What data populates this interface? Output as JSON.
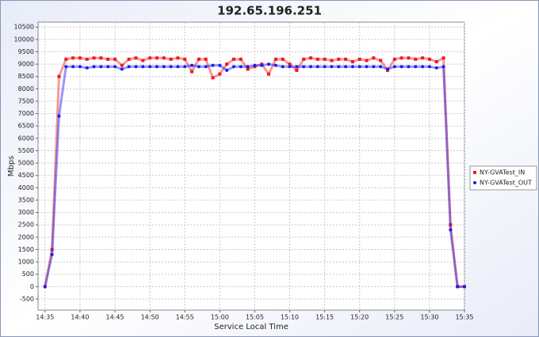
{
  "chart_data": {
    "type": "line",
    "title": "192.65.196.251",
    "x_label": "Service Local Time",
    "y_label": "Mbps",
    "x": [
      "14:35",
      "14:36",
      "14:37",
      "14:38",
      "14:39",
      "14:40",
      "14:41",
      "14:42",
      "14:43",
      "14:44",
      "14:45",
      "14:46",
      "14:47",
      "14:48",
      "14:49",
      "14:50",
      "14:51",
      "14:52",
      "14:53",
      "14:54",
      "14:55",
      "14:56",
      "14:57",
      "14:58",
      "14:59",
      "15:00",
      "15:01",
      "15:02",
      "15:03",
      "15:04",
      "15:05",
      "15:06",
      "15:07",
      "15:08",
      "15:09",
      "15:10",
      "15:11",
      "15:12",
      "15:13",
      "15:14",
      "15:15",
      "15:16",
      "15:17",
      "15:18",
      "15:19",
      "15:20",
      "15:21",
      "15:22",
      "15:23",
      "15:24",
      "15:25",
      "15:26",
      "15:27",
      "15:28",
      "15:29",
      "15:30",
      "15:31",
      "15:32",
      "15:33",
      "15:34",
      "15:35"
    ],
    "series": [
      {
        "name": "NY-GVATest_IN",
        "color": "#ee1c1c",
        "marker": "square",
        "values": [
          0,
          1500,
          8500,
          9200,
          9250,
          9250,
          9200,
          9250,
          9250,
          9200,
          9200,
          8950,
          9200,
          9250,
          9150,
          9250,
          9250,
          9250,
          9200,
          9250,
          9200,
          8700,
          9200,
          9200,
          8450,
          8600,
          9000,
          9200,
          9200,
          8800,
          8900,
          9000,
          8600,
          9200,
          9200,
          9000,
          8750,
          9200,
          9250,
          9200,
          9200,
          9150,
          9200,
          9200,
          9100,
          9200,
          9150,
          9250,
          9150,
          8750,
          9200,
          9250,
          9250,
          9200,
          9250,
          9200,
          9100,
          9250,
          2500,
          0,
          0
        ]
      },
      {
        "name": "NY-GVATest_OUT",
        "color": "#1c1cee",
        "marker": "circle",
        "values": [
          0,
          1300,
          6900,
          8900,
          8900,
          8900,
          8850,
          8900,
          8900,
          8900,
          8900,
          8800,
          8900,
          8900,
          8900,
          8900,
          8900,
          8900,
          8900,
          8900,
          8900,
          8950,
          8900,
          8900,
          8950,
          8950,
          8750,
          8900,
          8900,
          8900,
          8950,
          8950,
          9000,
          8950,
          8900,
          8900,
          8900,
          8900,
          8900,
          8900,
          8900,
          8900,
          8900,
          8900,
          8900,
          8900,
          8900,
          8900,
          8900,
          8800,
          8900,
          8900,
          8900,
          8900,
          8900,
          8900,
          8850,
          8900,
          2300,
          0,
          0
        ]
      }
    ],
    "xlim": [
      "14:34",
      "15:35"
    ],
    "xticks": [
      "14:35",
      "14:40",
      "14:45",
      "14:50",
      "14:55",
      "15:00",
      "15:05",
      "15:10",
      "15:15",
      "15:20",
      "15:25",
      "15:30",
      "15:35"
    ],
    "ylim": [
      -950,
      10700
    ],
    "yticks": [
      -500,
      0,
      500,
      1000,
      1500,
      2000,
      2500,
      3000,
      3500,
      4000,
      4500,
      5000,
      5500,
      6000,
      6500,
      7000,
      7500,
      8000,
      8500,
      9000,
      9500,
      10000,
      10500
    ],
    "grid": true,
    "legend": "right"
  }
}
